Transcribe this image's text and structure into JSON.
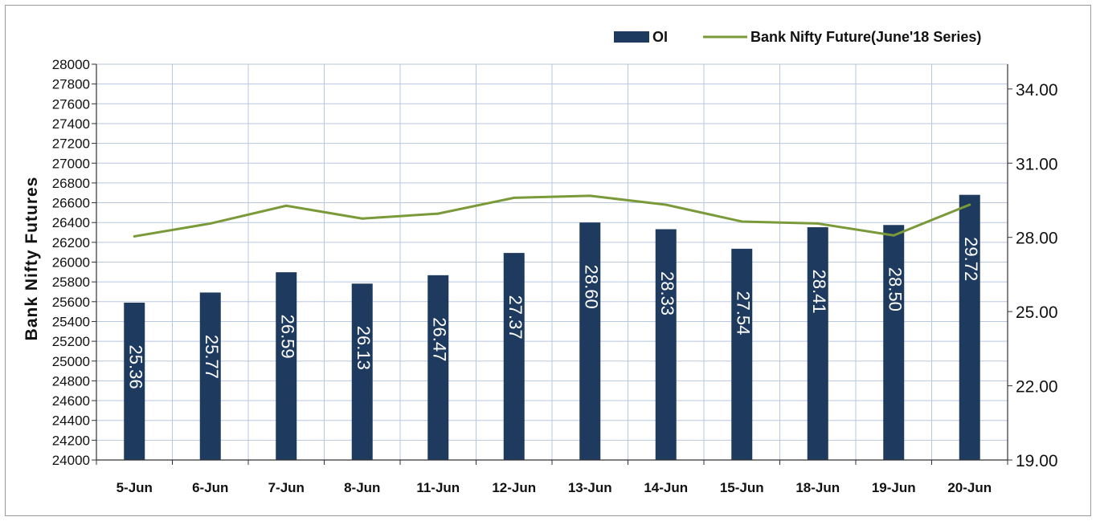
{
  "chart_data": {
    "type": "bar",
    "categories": [
      "5-Jun",
      "6-Jun",
      "7-Jun",
      "8-Jun",
      "11-Jun",
      "12-Jun",
      "13-Jun",
      "14-Jun",
      "15-Jun",
      "18-Jun",
      "19-Jun",
      "20-Jun"
    ],
    "series": [
      {
        "name": "OI",
        "type": "bar",
        "axis": "right",
        "values": [
          25.36,
          25.77,
          26.59,
          26.13,
          26.47,
          27.37,
          28.6,
          28.33,
          27.54,
          28.41,
          28.5,
          29.72
        ],
        "color": "#1f3a5f"
      },
      {
        "name": "Bank Nifty Future(June'18 Series)",
        "type": "line",
        "axis": "left",
        "values": [
          26260,
          26390,
          26570,
          26440,
          26490,
          26650,
          26670,
          26580,
          26410,
          26390,
          26270,
          26580
        ],
        "color": "#7a9a3a"
      }
    ],
    "ylabel": "Bank Nifty Futures",
    "y_left": {
      "range": [
        24000,
        28000
      ],
      "ticks": [
        24000,
        24200,
        24400,
        24600,
        24800,
        25000,
        25200,
        25400,
        25600,
        25800,
        26000,
        26200,
        26400,
        26600,
        26800,
        27000,
        27200,
        27400,
        27600,
        27800,
        28000
      ]
    },
    "y_right": {
      "range": [
        19,
        35
      ],
      "ticks": [
        "19.00",
        "22.00",
        "25.00",
        "28.00",
        "31.00",
        "34.00"
      ]
    },
    "grid": true,
    "legend_position": "top-right"
  }
}
